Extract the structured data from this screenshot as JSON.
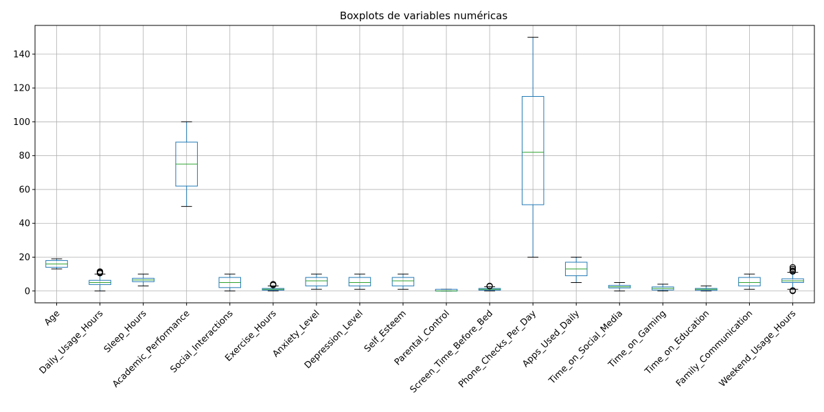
{
  "chart_data": {
    "type": "boxplot",
    "title": "Boxplots de variables numéricas",
    "xlabel": "",
    "ylabel": "",
    "ylim": [
      -7,
      157
    ],
    "yticks": [
      0,
      20,
      40,
      60,
      80,
      100,
      120,
      140
    ],
    "grid": true,
    "colors": {
      "box": "#1f77b4",
      "median": "#2ca02c",
      "whisker": "#000000",
      "grid": "#b0b0b0",
      "flier": "#000000"
    },
    "categories": [
      "Age",
      "Daily_Usage_Hours",
      "Sleep_Hours",
      "Academic_Performance",
      "Social_Interactions",
      "Exercise_Hours",
      "Anxiety_Level",
      "Depression_Level",
      "Self_Esteem",
      "Parental_Control",
      "Screen_Time_Before_Bed",
      "Phone_Checks_Per_Day",
      "Apps_Used_Daily",
      "Time_on_Social_Media",
      "Time_on_Gaming",
      "Time_on_Education",
      "Family_Communication",
      "Weekend_Usage_Hours"
    ],
    "boxes": [
      {
        "whislo": 13,
        "q1": 14,
        "med": 16,
        "q3": 18,
        "whishi": 19,
        "fliers": []
      },
      {
        "whislo": 0,
        "q1": 3.8,
        "med": 5,
        "q3": 6.3,
        "whishi": 10,
        "fliers": [
          10.5,
          11,
          11.5
        ]
      },
      {
        "whislo": 3,
        "q1": 5.5,
        "med": 6.5,
        "q3": 7.5,
        "whishi": 10,
        "fliers": []
      },
      {
        "whislo": 50,
        "q1": 62,
        "med": 75,
        "q3": 88,
        "whishi": 100,
        "fliers": []
      },
      {
        "whislo": 0,
        "q1": 2,
        "med": 5,
        "q3": 8,
        "whishi": 10,
        "fliers": []
      },
      {
        "whislo": 0,
        "q1": 0.5,
        "med": 1,
        "q3": 1.5,
        "whishi": 3,
        "fliers": [
          3.5,
          4
        ]
      },
      {
        "whislo": 1,
        "q1": 3,
        "med": 6,
        "q3": 8,
        "whishi": 10,
        "fliers": []
      },
      {
        "whislo": 1,
        "q1": 3,
        "med": 5,
        "q3": 8,
        "whishi": 10,
        "fliers": []
      },
      {
        "whislo": 1,
        "q1": 3,
        "med": 6,
        "q3": 8,
        "whishi": 10,
        "fliers": []
      },
      {
        "whislo": 0,
        "q1": 0,
        "med": 0,
        "q3": 1,
        "whishi": 1,
        "fliers": []
      },
      {
        "whislo": 0,
        "q1": 0.5,
        "med": 1,
        "q3": 1.5,
        "whishi": 2.5,
        "fliers": [
          2.8,
          3
        ]
      },
      {
        "whislo": 20,
        "q1": 51,
        "med": 82,
        "q3": 115,
        "whishi": 150,
        "fliers": []
      },
      {
        "whislo": 5,
        "q1": 9,
        "med": 13,
        "q3": 17,
        "whishi": 20,
        "fliers": []
      },
      {
        "whislo": 0,
        "q1": 1.8,
        "med": 2.5,
        "q3": 3.3,
        "whishi": 5,
        "fliers": []
      },
      {
        "whislo": 0,
        "q1": 0.6,
        "med": 1.5,
        "q3": 2.4,
        "whishi": 4,
        "fliers": []
      },
      {
        "whislo": 0,
        "q1": 0.4,
        "med": 1,
        "q3": 1.5,
        "whishi": 3,
        "fliers": []
      },
      {
        "whislo": 1,
        "q1": 3,
        "med": 5,
        "q3": 8,
        "whishi": 10,
        "fliers": []
      },
      {
        "whislo": 1,
        "q1": 5,
        "med": 6,
        "q3": 7.2,
        "whishi": 11,
        "fliers": [
          0,
          0.3,
          11.5,
          12,
          13,
          14
        ]
      }
    ]
  }
}
